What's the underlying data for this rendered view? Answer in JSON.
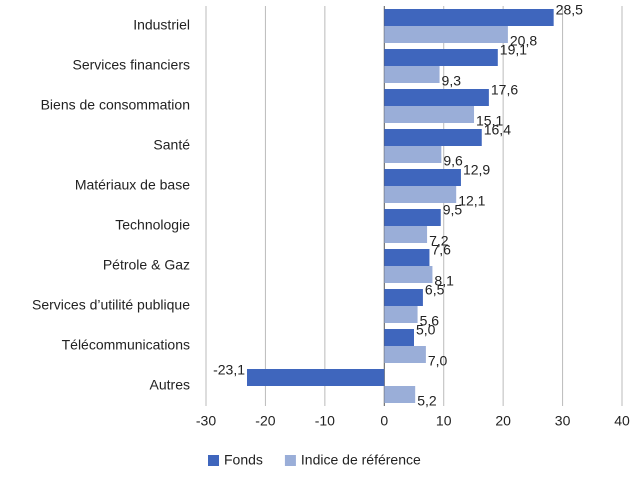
{
  "chart_data": {
    "type": "bar",
    "orientation": "horizontal",
    "categories": [
      "Industriel",
      "Services financiers",
      "Biens de consommation",
      "Santé",
      "Matériaux de base",
      "Technologie",
      "Pétrole & Gaz",
      "Services d’utilité publique",
      "Télécommunications",
      "Autres"
    ],
    "series": [
      {
        "name": "Fonds",
        "color": "#3f66bd",
        "values": [
          28.5,
          19.1,
          17.6,
          16.4,
          12.9,
          9.5,
          7.6,
          6.5,
          5.0,
          -23.1
        ],
        "value_labels": [
          "28,5",
          "19,1",
          "17,6",
          "16,4",
          "12,9",
          "9,5",
          "7,6",
          "6,5",
          "5,0",
          "-23,1"
        ]
      },
      {
        "name": "Indice de référence",
        "color": "#9aaed8",
        "values": [
          20.8,
          9.3,
          15.1,
          9.6,
          12.1,
          7.2,
          8.1,
          5.6,
          7.0,
          5.2
        ],
        "value_labels": [
          "20,8",
          "9,3",
          "15,1",
          "9,6",
          "12,1",
          "7,2",
          "8,1",
          "5,6",
          "7,0",
          "5,2"
        ]
      }
    ],
    "xlim": [
      -30,
      40
    ],
    "xticks": [
      -30,
      -20,
      -10,
      0,
      10,
      20,
      30,
      40
    ],
    "grid": true,
    "legend": "bottom"
  }
}
